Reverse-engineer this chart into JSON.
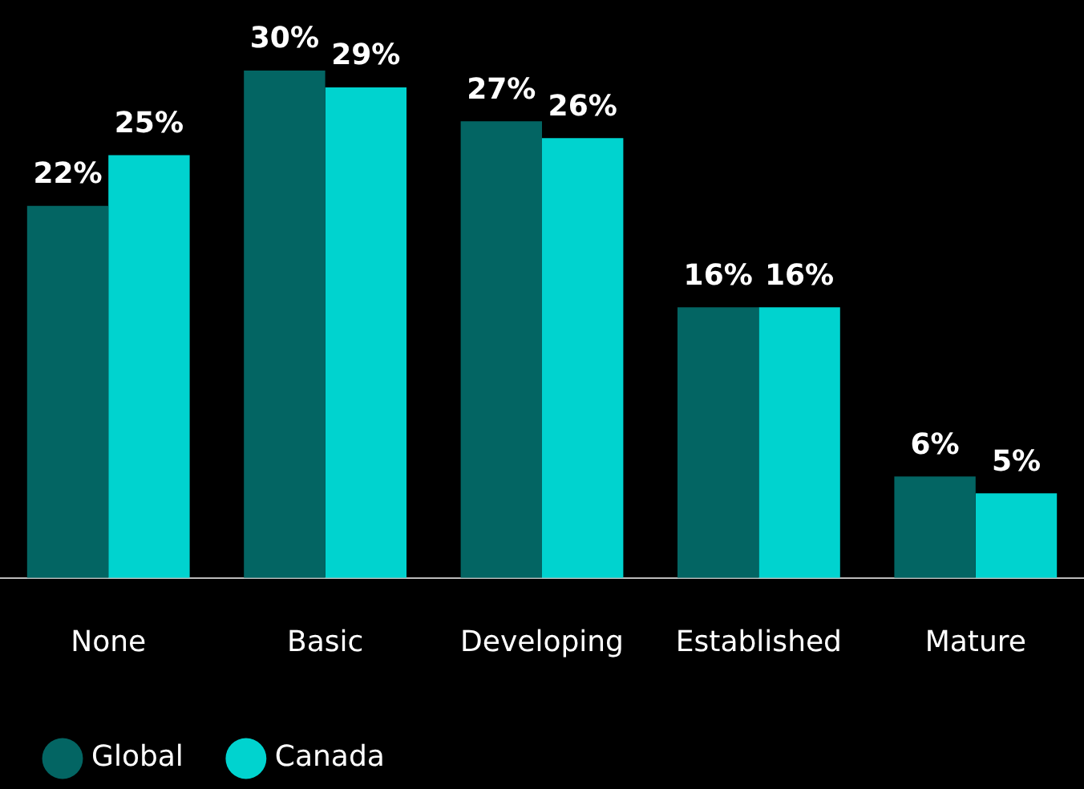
{
  "chart_data": {
    "type": "bar",
    "categories": [
      "None",
      "Basic",
      "Developing",
      "Established",
      "Mature"
    ],
    "series": [
      {
        "name": "Global",
        "color": "#036563",
        "values": [
          22,
          30,
          27,
          16,
          6
        ],
        "value_labels": [
          "22%",
          "30%",
          "27%",
          "16%",
          "6%"
        ]
      },
      {
        "name": "Canada",
        "color": "#00d3cf",
        "values": [
          25,
          29,
          26,
          16,
          5
        ],
        "value_labels": [
          "25%",
          "29%",
          "26%",
          "16%",
          "5%"
        ]
      }
    ],
    "legend": "bottom left"
  }
}
